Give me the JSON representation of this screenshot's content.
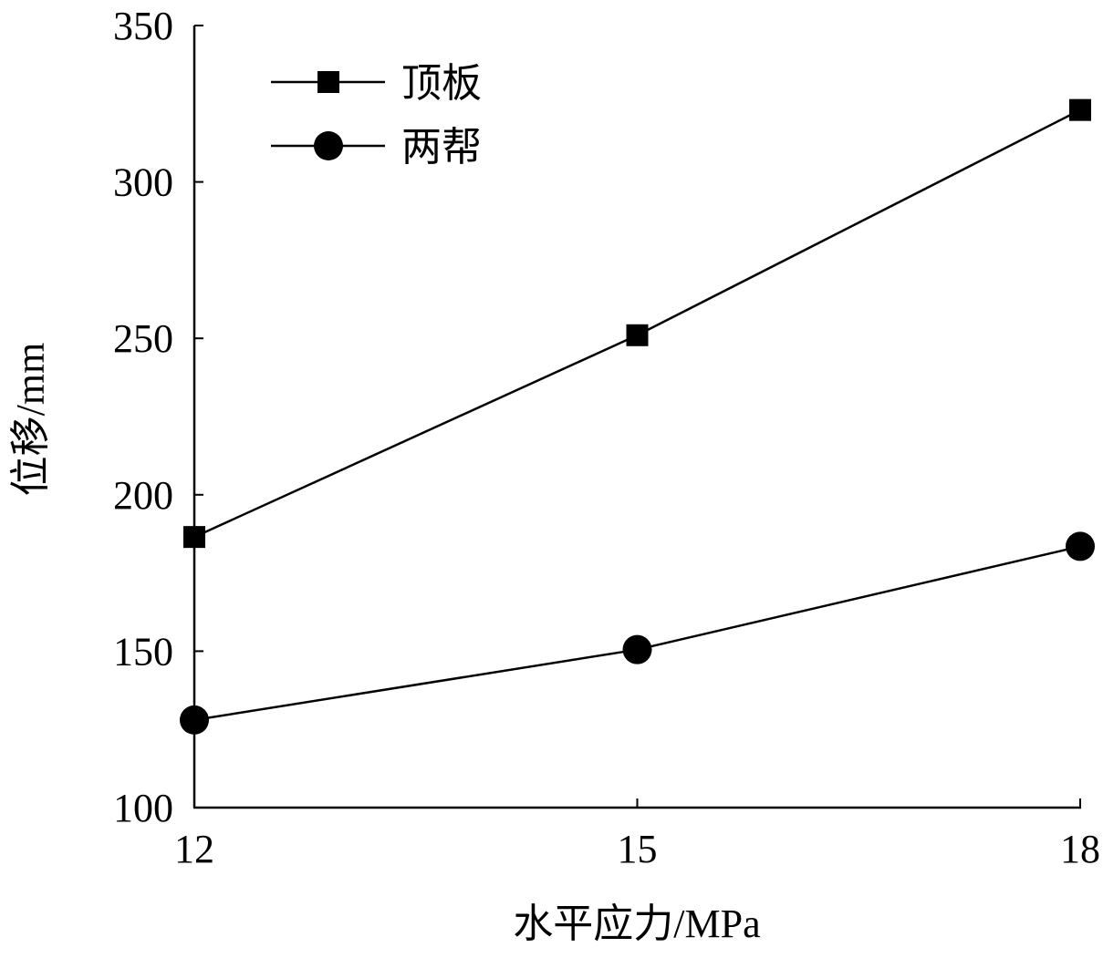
{
  "chart_data": {
    "type": "line",
    "title": "",
    "xlabel": "水平应力/MPa",
    "ylabel": "位移/mm",
    "x": [
      12,
      15,
      18
    ],
    "x_ticks": [
      "12",
      "15",
      "18"
    ],
    "xlim": [
      12,
      18
    ],
    "ylim": [
      100,
      350
    ],
    "y_ticks": [
      "100",
      "150",
      "200",
      "250",
      "300",
      "350"
    ],
    "grid": false,
    "legend_position": "top-left",
    "series": [
      {
        "name": "顶板",
        "marker": "square",
        "color": "#000000",
        "values": [
          186.5,
          251,
          323
        ]
      },
      {
        "name": "两帮",
        "marker": "circle",
        "color": "#000000",
        "values": [
          128,
          150.5,
          183.5
        ]
      }
    ]
  }
}
